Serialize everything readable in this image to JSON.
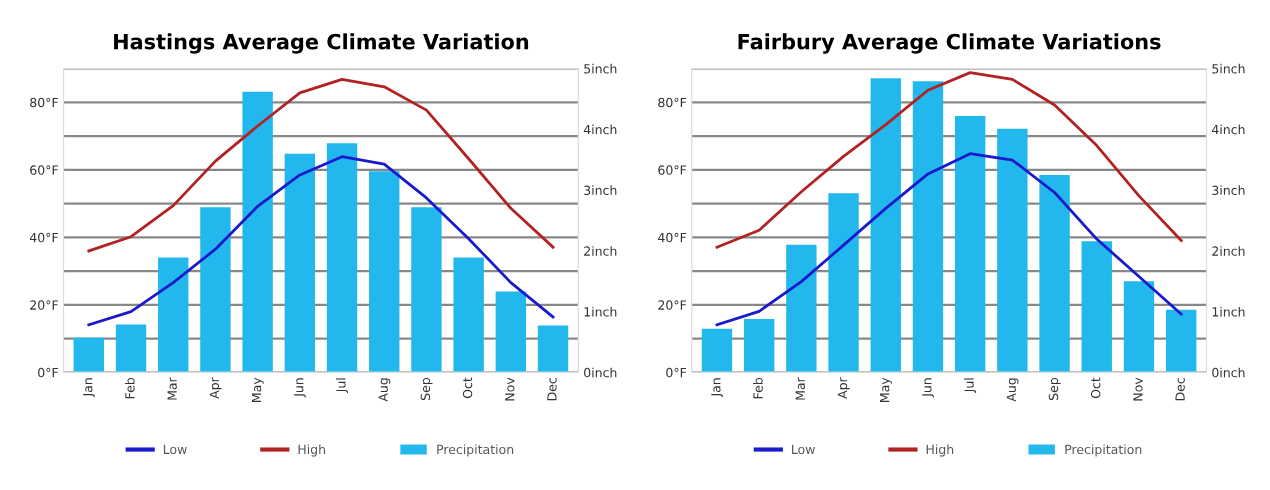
{
  "chart_data": [
    {
      "type": "bar",
      "title": "Hastings Average Climate Variation",
      "categories": [
        "Jan",
        "Feb",
        "Mar",
        "Apr",
        "May",
        "Jun",
        "Jul",
        "Aug",
        "Sep",
        "Oct",
        "Nov",
        "Dec"
      ],
      "series": [
        {
          "name": "Low",
          "type": "line",
          "color": "#1a1acc",
          "values": [
            14.1,
            18,
            26.6,
            36.5,
            49.2,
            58.5,
            63.9,
            61.7,
            51.7,
            39.6,
            26.6,
            16.4
          ]
        },
        {
          "name": "High",
          "type": "line",
          "color": "#b22222",
          "values": [
            36,
            40.2,
            49.4,
            62.6,
            73,
            82.8,
            86.8,
            84.6,
            77.7,
            63.3,
            48.6,
            37.1
          ]
        },
        {
          "name": "Precipitation",
          "axis": "y2",
          "color": "#22b8ee",
          "values": [
            0.57,
            0.79,
            1.89,
            2.72,
            4.62,
            3.6,
            3.77,
            3.31,
            2.72,
            1.89,
            1.33,
            0.77
          ]
        }
      ],
      "ylim": [
        0,
        90
      ],
      "yticks": [
        {
          "value": 0,
          "label": "0°F"
        },
        {
          "value": 10,
          "label": null
        },
        {
          "value": 20,
          "label": "20°F"
        },
        {
          "value": 30,
          "label": null
        },
        {
          "value": 40,
          "label": "40°F"
        },
        {
          "value": 50,
          "label": null
        },
        {
          "value": 60,
          "label": "60°F"
        },
        {
          "value": 70,
          "label": null
        },
        {
          "value": 80,
          "label": "80°F"
        },
        {
          "value": 90,
          "label": null
        }
      ],
      "y2lim": [
        0,
        5
      ],
      "y2ticks": [
        {
          "value": 0,
          "label": "0inch"
        },
        {
          "value": 1,
          "label": "1inch"
        },
        {
          "value": 2,
          "label": "2inch"
        },
        {
          "value": 3,
          "label": "3inch"
        },
        {
          "value": 4,
          "label": "4inch"
        },
        {
          "value": 5,
          "label": "5inch"
        }
      ],
      "grid": "y",
      "legend": "bottom"
    },
    {
      "type": "bar",
      "title": "Fairbury Average Climate Variations",
      "categories": [
        "Jan",
        "Feb",
        "Mar",
        "Apr",
        "May",
        "Jun",
        "Jul",
        "Aug",
        "Sep",
        "Oct",
        "Nov",
        "Dec"
      ],
      "series": [
        {
          "name": "Low",
          "type": "line",
          "color": "#1a1acc",
          "values": [
            14.1,
            18.1,
            26.9,
            37.7,
            48.6,
            58.8,
            64.8,
            62.9,
            53.3,
            39.5,
            28.4,
            17.3
          ]
        },
        {
          "name": "High",
          "type": "line",
          "color": "#b22222",
          "values": [
            37.1,
            42.1,
            53.5,
            64,
            73.4,
            83.6,
            88.8,
            86.8,
            79.2,
            67.2,
            52.3,
            39.1
          ]
        },
        {
          "name": "Precipitation",
          "axis": "y2",
          "color": "#22b8ee",
          "values": [
            0.72,
            0.88,
            2.1,
            2.95,
            4.84,
            4.79,
            4.22,
            4.01,
            3.25,
            2.16,
            1.5,
            1.03
          ]
        }
      ],
      "ylim": [
        0,
        90
      ],
      "yticks": [
        {
          "value": 0,
          "label": "0°F"
        },
        {
          "value": 10,
          "label": null
        },
        {
          "value": 20,
          "label": "20°F"
        },
        {
          "value": 30,
          "label": null
        },
        {
          "value": 40,
          "label": "40°F"
        },
        {
          "value": 50,
          "label": null
        },
        {
          "value": 60,
          "label": "60°F"
        },
        {
          "value": 70,
          "label": null
        },
        {
          "value": 80,
          "label": "80°F"
        },
        {
          "value": 90,
          "label": null
        }
      ],
      "y2lim": [
        0,
        5
      ],
      "y2ticks": [
        {
          "value": 0,
          "label": "0inch"
        },
        {
          "value": 1,
          "label": "1inch"
        },
        {
          "value": 2,
          "label": "2inch"
        },
        {
          "value": 3,
          "label": "3inch"
        },
        {
          "value": 4,
          "label": "4inch"
        },
        {
          "value": 5,
          "label": "5inch"
        }
      ],
      "grid": "y",
      "legend": "bottom"
    }
  ]
}
